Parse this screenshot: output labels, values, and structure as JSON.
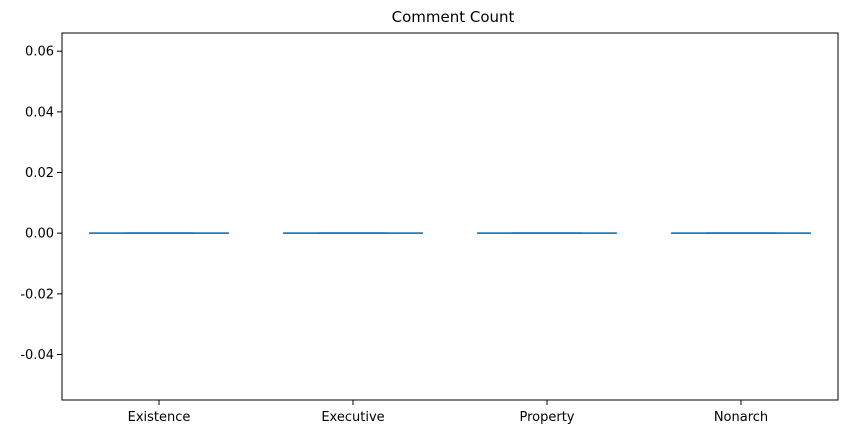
{
  "chart_data": {
    "type": "box",
    "title": "Comment Count",
    "xlabel": "",
    "ylabel": "",
    "categories": [
      "Existence",
      "Executive",
      "Property",
      "Nonarch"
    ],
    "series": [
      {
        "category": "Existence",
        "min": 0.0,
        "q1": 0.0,
        "median": 0.0,
        "q3": 0.0,
        "max": 0.0
      },
      {
        "category": "Executive",
        "min": 0.0,
        "q1": 0.0,
        "median": 0.0,
        "q3": 0.0,
        "max": 0.0
      },
      {
        "category": "Property",
        "min": 0.0,
        "q1": 0.0,
        "median": 0.0,
        "q3": 0.0,
        "max": 0.0
      },
      {
        "category": "Nonarch",
        "min": 0.0,
        "q1": 0.0,
        "median": 0.0,
        "q3": 0.0,
        "max": 0.0
      }
    ],
    "yticks": [
      "0.06",
      "0.04",
      "0.02",
      "0.00",
      "-0.02",
      "-0.04"
    ],
    "ylim": [
      -0.055,
      0.066
    ],
    "grid": false,
    "colors": {
      "box": "#1f77b4",
      "median": "#1f77b4",
      "axes": "#000000"
    }
  }
}
